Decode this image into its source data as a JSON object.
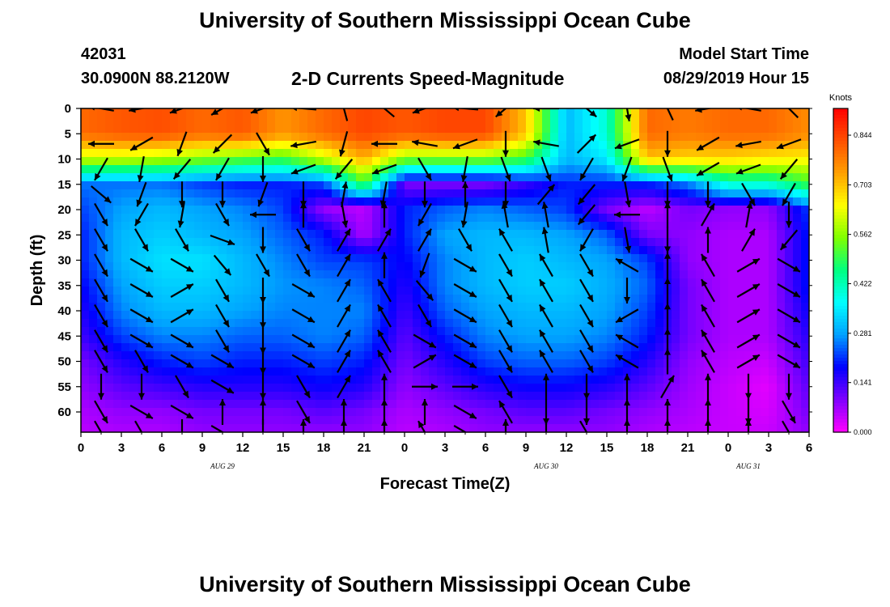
{
  "header": {
    "main_title": "University of Southern Mississippi Ocean Cube",
    "station_id": "42031",
    "station_location": "30.0900N 88.2120W",
    "chart_title": "2-D Currents Speed-Magnitude",
    "model_start_label": "Model Start Time",
    "model_start_time": "08/29/2019 Hour 15"
  },
  "footer": {
    "title": "University of Southern Mississippi Ocean Cube"
  },
  "chart_data": {
    "type": "heatmap",
    "title": "2-D Currents Speed-Magnitude",
    "xlabel": "Forecast Time(Z)",
    "ylabel": "Depth (ft)",
    "x_tick_labels": [
      "0",
      "3",
      "6",
      "9",
      "12",
      "15",
      "18",
      "21",
      "0",
      "3",
      "6",
      "9",
      "12",
      "15",
      "18",
      "21",
      "0",
      "3",
      "6"
    ],
    "date_labels": [
      {
        "label": "AUG 29",
        "tick_index": 3.5
      },
      {
        "label": "AUG 30",
        "tick_index": 11.5
      },
      {
        "label": "AUG 31",
        "tick_index": 16.5
      }
    ],
    "xlim_hours": [
      0,
      54
    ],
    "y_ticks": [
      0,
      5,
      10,
      15,
      20,
      25,
      30,
      35,
      40,
      45,
      50,
      55,
      60
    ],
    "ylim": [
      0,
      64
    ],
    "y_reversed": true,
    "colorbar": {
      "title": "Knots",
      "ticks": [
        0.0,
        0.141,
        0.281,
        0.422,
        0.562,
        0.703,
        0.844
      ],
      "tick_labels": [
        "0.000",
        "0.141",
        "0.281",
        "0.422",
        "0.562",
        "0.703",
        "0.844"
      ],
      "range": [
        0,
        0.92
      ],
      "colors": [
        "#ff00ff",
        "#8000ff",
        "#0000ff",
        "#00a0ff",
        "#00ffff",
        "#00ff80",
        "#80ff00",
        "#ffff00",
        "#ffa000",
        "#ff5000",
        "#ff0000"
      ]
    },
    "speed_grid": {
      "depths": [
        0,
        5,
        10,
        15,
        20,
        25,
        30,
        35,
        40,
        45,
        50,
        55,
        60,
        64
      ],
      "hours": [
        0,
        3,
        6,
        9,
        12,
        15,
        18,
        21,
        24,
        27,
        30,
        33,
        36,
        39,
        42,
        45,
        48,
        51,
        54
      ],
      "values": [
        [
          0.8,
          0.82,
          0.83,
          0.8,
          0.82,
          0.75,
          0.8,
          0.84,
          0.82,
          0.84,
          0.84,
          0.7,
          0.3,
          0.4,
          0.8,
          0.78,
          0.8,
          0.8,
          0.76
        ],
        [
          0.8,
          0.82,
          0.83,
          0.8,
          0.82,
          0.75,
          0.8,
          0.84,
          0.82,
          0.84,
          0.84,
          0.7,
          0.3,
          0.4,
          0.8,
          0.78,
          0.8,
          0.8,
          0.76
        ],
        [
          0.6,
          0.6,
          0.58,
          0.55,
          0.52,
          0.5,
          0.6,
          0.72,
          0.55,
          0.55,
          0.55,
          0.5,
          0.3,
          0.35,
          0.7,
          0.68,
          0.68,
          0.66,
          0.65
        ],
        [
          0.25,
          0.25,
          0.25,
          0.22,
          0.2,
          0.2,
          0.22,
          0.5,
          0.1,
          0.1,
          0.1,
          0.15,
          0.2,
          0.2,
          0.2,
          0.25,
          0.4,
          0.4,
          0.5
        ],
        [
          0.22,
          0.28,
          0.3,
          0.28,
          0.26,
          0.22,
          0.08,
          0.05,
          0.2,
          0.24,
          0.26,
          0.24,
          0.22,
          0.1,
          0.05,
          0.1,
          0.08,
          0.08,
          0.22
        ],
        [
          0.2,
          0.3,
          0.32,
          0.3,
          0.28,
          0.24,
          0.2,
          0.06,
          0.2,
          0.28,
          0.3,
          0.3,
          0.28,
          0.24,
          0.1,
          0.08,
          0.06,
          0.06,
          0.2
        ],
        [
          0.2,
          0.3,
          0.34,
          0.34,
          0.3,
          0.26,
          0.22,
          0.22,
          0.18,
          0.26,
          0.3,
          0.32,
          0.3,
          0.28,
          0.22,
          0.08,
          0.06,
          0.06,
          0.2
        ],
        [
          0.18,
          0.28,
          0.32,
          0.32,
          0.3,
          0.27,
          0.26,
          0.24,
          0.16,
          0.26,
          0.3,
          0.32,
          0.32,
          0.29,
          0.24,
          0.1,
          0.06,
          0.06,
          0.2
        ],
        [
          0.16,
          0.26,
          0.3,
          0.3,
          0.28,
          0.26,
          0.26,
          0.26,
          0.14,
          0.24,
          0.28,
          0.3,
          0.3,
          0.28,
          0.22,
          0.1,
          0.06,
          0.06,
          0.18
        ],
        [
          0.14,
          0.22,
          0.26,
          0.26,
          0.24,
          0.24,
          0.26,
          0.24,
          0.12,
          0.2,
          0.26,
          0.28,
          0.28,
          0.26,
          0.2,
          0.1,
          0.06,
          0.06,
          0.16
        ],
        [
          0.1,
          0.16,
          0.2,
          0.22,
          0.2,
          0.2,
          0.22,
          0.2,
          0.1,
          0.16,
          0.22,
          0.24,
          0.24,
          0.22,
          0.16,
          0.08,
          0.05,
          0.04,
          0.14
        ],
        [
          0.08,
          0.12,
          0.14,
          0.16,
          0.16,
          0.16,
          0.18,
          0.16,
          0.08,
          0.12,
          0.16,
          0.18,
          0.18,
          0.16,
          0.12,
          0.07,
          0.04,
          0.02,
          0.12
        ],
        [
          0.06,
          0.08,
          0.08,
          0.1,
          0.1,
          0.1,
          0.12,
          0.1,
          0.06,
          0.08,
          0.1,
          0.12,
          0.12,
          0.1,
          0.08,
          0.06,
          0.04,
          0.03,
          0.1
        ],
        [
          0.05,
          0.06,
          0.06,
          0.08,
          0.08,
          0.08,
          0.08,
          0.08,
          0.05,
          0.06,
          0.08,
          0.08,
          0.08,
          0.08,
          0.06,
          0.05,
          0.04,
          0.04,
          0.08
        ]
      ]
    },
    "vectors": {
      "depths": [
        0,
        7,
        12,
        17,
        21,
        26,
        31,
        36,
        41,
        46,
        50,
        55,
        60,
        64
      ],
      "hours": [
        1.5,
        4.5,
        7.5,
        10.5,
        13.5,
        16.5,
        19.5,
        22.5,
        25.5,
        28.5,
        31.5,
        34.5,
        37.5,
        40.5,
        43.5,
        46.5,
        49.5,
        52.5
      ],
      "direction_deg": [
        [
          170,
          190,
          200,
          210,
          200,
          175,
          105,
          140,
          200,
          175,
          220,
          180,
          320,
          280,
          115,
          190,
          170,
          135
        ],
        [
          180,
          210,
          250,
          225,
          300,
          190,
          255,
          180,
          170,
          200,
          270,
          170,
          45,
          200,
          270,
          210,
          190,
          200
        ],
        [
          240,
          260,
          230,
          240,
          270,
          200,
          230,
          200,
          300,
          260,
          290,
          290,
          240,
          250,
          290,
          210,
          200,
          230
        ],
        [
          320,
          250,
          270,
          270,
          250,
          270,
          80,
          260,
          270,
          90,
          270,
          50,
          230,
          280,
          270,
          270,
          300,
          240
        ],
        [
          300,
          240,
          260,
          300,
          180,
          90,
          280,
          90,
          240,
          260,
          100,
          100,
          230,
          180,
          90,
          60,
          80,
          270
        ],
        [
          300,
          300,
          300,
          340,
          270,
          300,
          60,
          60,
          60,
          300,
          120,
          100,
          240,
          280,
          270,
          90,
          60,
          230
        ],
        [
          300,
          330,
          330,
          310,
          300,
          300,
          60,
          90,
          250,
          330,
          300,
          120,
          300,
          150,
          90,
          120,
          30,
          330
        ],
        [
          300,
          330,
          30,
          300,
          270,
          330,
          60,
          120,
          310,
          330,
          300,
          120,
          300,
          270,
          90,
          120,
          30,
          330
        ],
        [
          300,
          330,
          30,
          300,
          270,
          330,
          60,
          120,
          300,
          330,
          300,
          120,
          300,
          210,
          90,
          120,
          30,
          330
        ],
        [
          300,
          330,
          330,
          300,
          270,
          330,
          60,
          120,
          330,
          330,
          300,
          120,
          300,
          150,
          90,
          120,
          30,
          330
        ],
        [
          300,
          300,
          330,
          330,
          270,
          330,
          60,
          120,
          30,
          330,
          300,
          120,
          300,
          150,
          90,
          120,
          30,
          330
        ],
        [
          270,
          270,
          300,
          330,
          270,
          300,
          60,
          90,
          0,
          0,
          300,
          90,
          270,
          90,
          60,
          90,
          270,
          270
        ],
        [
          300,
          330,
          330,
          90,
          90,
          300,
          90,
          90,
          90,
          330,
          120,
          270,
          270,
          90,
          90,
          90,
          270,
          300
        ],
        [
          300,
          300,
          270,
          330,
          270,
          90,
          90,
          90,
          120,
          330,
          90,
          270,
          300,
          90,
          90,
          90,
          90,
          300
        ]
      ]
    }
  }
}
